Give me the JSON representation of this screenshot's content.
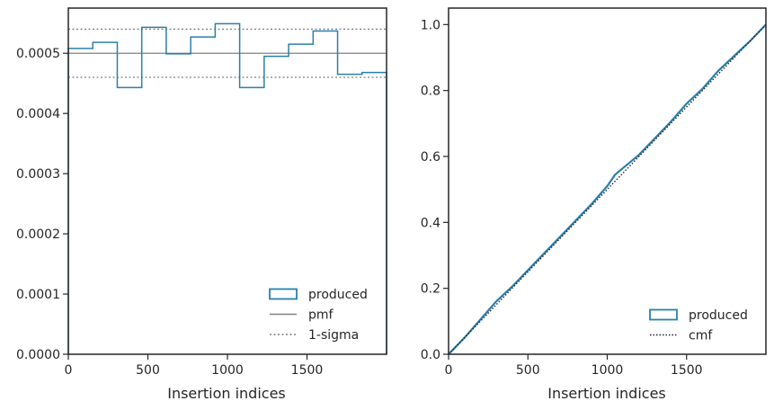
{
  "colors": {
    "produced": "#2a7fab",
    "pmf": "#808080",
    "sigma": "#808080",
    "cmf": "#262626",
    "axes": "#262626",
    "background": "#ffffff"
  },
  "chart_data": [
    {
      "type": "histogram",
      "xlabel": "Insertion indices",
      "ylabel": "",
      "title": "",
      "xlim": [
        0,
        2000
      ],
      "ylim": [
        0,
        0.000575
      ],
      "xticks": [
        0,
        500,
        1000,
        1500
      ],
      "xtick_labels": [
        "0",
        "500",
        "1000",
        "1500"
      ],
      "yticks": [
        0,
        0.0001,
        0.0002,
        0.0003,
        0.0004,
        0.0005
      ],
      "ytick_labels": [
        "0.0000",
        "0.0001",
        "0.0002",
        "0.0003",
        "0.0004",
        "0.0005"
      ],
      "legend_position": "lower-right",
      "series": [
        {
          "name": "produced",
          "style": "step-outline",
          "bin_edges": [
            0,
            153.8,
            307.7,
            461.5,
            615.4,
            769.2,
            923.1,
            1076.9,
            1230.8,
            1384.6,
            1538.5,
            1692.3,
            1846.2,
            2000
          ],
          "values": [
            0.000508,
            0.000518,
            0.000443,
            0.000543,
            0.000499,
            0.000527,
            0.000549,
            0.000443,
            0.000495,
            0.000515,
            0.000537,
            0.000465,
            0.000468
          ]
        },
        {
          "name": "pmf",
          "style": "solid",
          "y": 0.0005
        },
        {
          "name": "1-sigma",
          "style": "dotted",
          "y": [
            0.00046,
            0.00054
          ]
        }
      ]
    },
    {
      "type": "line",
      "xlabel": "Insertion indices",
      "ylabel": "",
      "title": "",
      "xlim": [
        0,
        2000
      ],
      "ylim": [
        0,
        1.05
      ],
      "xticks": [
        0,
        500,
        1000,
        1500
      ],
      "xtick_labels": [
        "0",
        "500",
        "1000",
        "1500"
      ],
      "yticks": [
        0,
        0.2,
        0.4,
        0.6,
        0.8,
        1.0
      ],
      "ytick_labels": [
        "0.0",
        "0.2",
        "0.4",
        "0.6",
        "0.8",
        "1.0"
      ],
      "legend_position": "lower-right",
      "series": [
        {
          "name": "produced",
          "style": "step-outline",
          "x": [
            0,
            100,
            200,
            300,
            400,
            500,
            600,
            700,
            800,
            900,
            1000,
            1050,
            1100,
            1200,
            1300,
            1400,
            1500,
            1600,
            1700,
            1800,
            1900,
            2000
          ],
          "y": [
            0,
            0.05,
            0.105,
            0.16,
            0.205,
            0.255,
            0.305,
            0.355,
            0.405,
            0.455,
            0.51,
            0.545,
            0.565,
            0.605,
            0.655,
            0.705,
            0.76,
            0.805,
            0.86,
            0.905,
            0.95,
            1.0
          ]
        },
        {
          "name": "cmf",
          "style": "dotted",
          "x": [
            0,
            2000
          ],
          "y": [
            0,
            1.0
          ]
        }
      ]
    }
  ]
}
